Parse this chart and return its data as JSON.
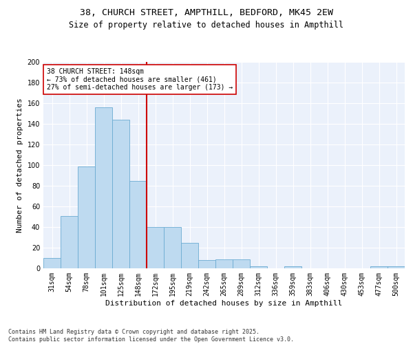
{
  "title_line1": "38, CHURCH STREET, AMPTHILL, BEDFORD, MK45 2EW",
  "title_line2": "Size of property relative to detached houses in Ampthill",
  "xlabel": "Distribution of detached houses by size in Ampthill",
  "ylabel": "Number of detached properties",
  "categories": [
    "31sqm",
    "54sqm",
    "78sqm",
    "101sqm",
    "125sqm",
    "148sqm",
    "172sqm",
    "195sqm",
    "219sqm",
    "242sqm",
    "265sqm",
    "289sqm",
    "312sqm",
    "336sqm",
    "359sqm",
    "383sqm",
    "406sqm",
    "430sqm",
    "453sqm",
    "477sqm",
    "500sqm"
  ],
  "values": [
    10,
    51,
    99,
    156,
    144,
    85,
    40,
    40,
    25,
    8,
    9,
    9,
    2,
    0,
    2,
    0,
    0,
    0,
    0,
    2,
    2
  ],
  "bar_color": "#BEDAF0",
  "bar_edge_color": "#6AABD2",
  "vline_color": "#CC0000",
  "vline_index": 5,
  "annotation_text": "38 CHURCH STREET: 148sqm\n← 73% of detached houses are smaller (461)\n27% of semi-detached houses are larger (173) →",
  "annotation_box_color": "#CC0000",
  "annotation_fill": "white",
  "ylim": [
    0,
    200
  ],
  "yticks": [
    0,
    20,
    40,
    60,
    80,
    100,
    120,
    140,
    160,
    180,
    200
  ],
  "background_color": "#EBF1FB",
  "grid_color": "white",
  "footnote": "Contains HM Land Registry data © Crown copyright and database right 2025.\nContains public sector information licensed under the Open Government Licence v3.0.",
  "title_fontsize": 9.5,
  "subtitle_fontsize": 8.5,
  "axis_label_fontsize": 8,
  "tick_fontsize": 7,
  "annotation_fontsize": 7,
  "footnote_fontsize": 6
}
